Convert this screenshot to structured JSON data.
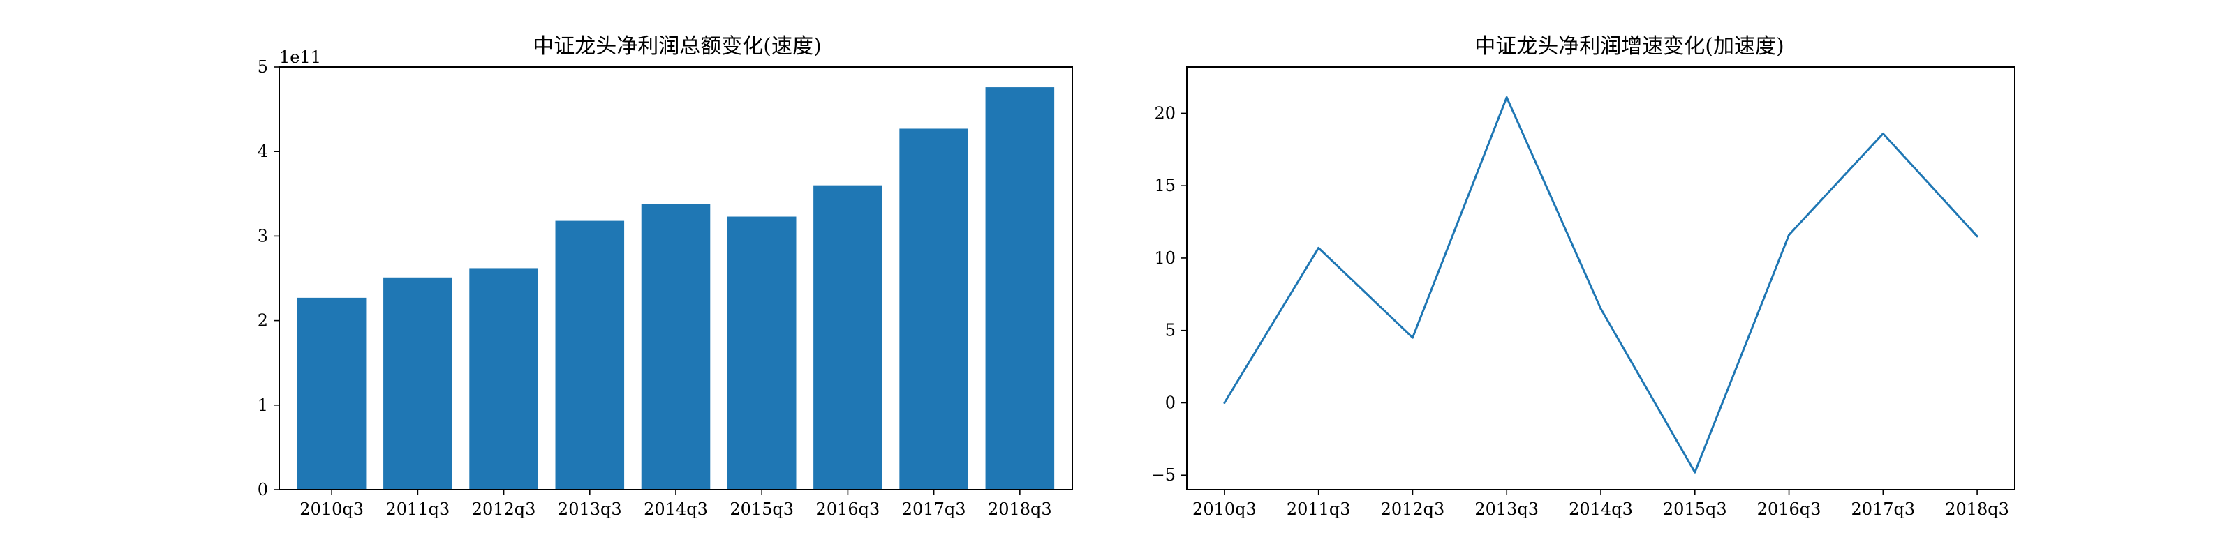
{
  "chart_data": [
    {
      "type": "bar",
      "title": "中证龙头净利润总额变化(速度)",
      "xlabel": "",
      "ylabel": "",
      "categories": [
        "2010q3",
        "2011q3",
        "2012q3",
        "2013q3",
        "2014q3",
        "2015q3",
        "2016q3",
        "2017q3",
        "2018q3"
      ],
      "values": [
        227000000000.0,
        251000000000.0,
        262000000000.0,
        318000000000.0,
        338000000000.0,
        323000000000.0,
        360000000000.0,
        427000000000.0,
        476000000000.0
      ],
      "ylim": [
        0,
        500000000000.0
      ],
      "yticks": [
        0,
        1,
        2,
        3,
        4,
        5
      ],
      "ytick_labels": [
        "0",
        "1",
        "2",
        "3",
        "4",
        "5"
      ],
      "offset_label": "1e11",
      "grid": false,
      "color": "#1f77b4"
    },
    {
      "type": "line",
      "title": "中证龙头净利润增速变化(加速度)",
      "xlabel": "",
      "ylabel": "",
      "categories": [
        "2010q3",
        "2011q3",
        "2012q3",
        "2013q3",
        "2014q3",
        "2015q3",
        "2016q3",
        "2017q3",
        "2018q3"
      ],
      "values": [
        0,
        10.7,
        4.5,
        21.1,
        6.5,
        -4.8,
        11.6,
        18.6,
        11.5
      ],
      "ylim": [
        -6,
        23.2
      ],
      "yticks": [
        -5,
        0,
        5,
        10,
        15,
        20
      ],
      "ytick_labels": [
        "−5",
        "0",
        "5",
        "10",
        "15",
        "20"
      ],
      "grid": false,
      "color": "#1f77b4"
    }
  ]
}
